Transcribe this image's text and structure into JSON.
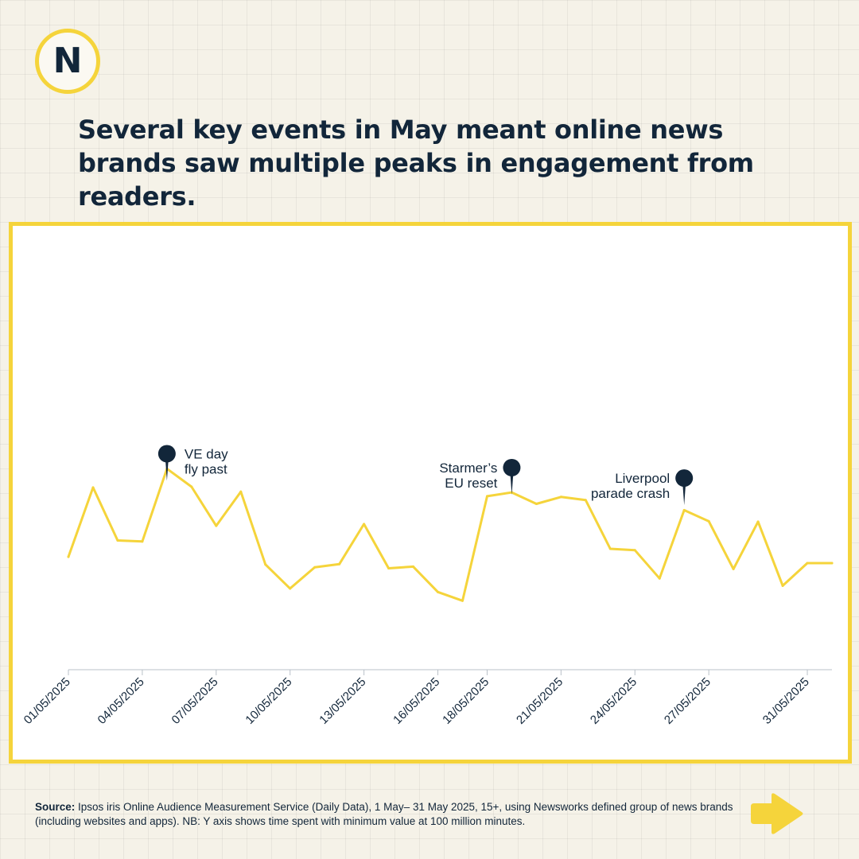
{
  "logo": {
    "letter": "N",
    "ring_color": "#f5d43b"
  },
  "headline": "Several key events in May meant online news brands saw multiple peaks in engagement from readers.",
  "chart_data": {
    "type": "line",
    "title": "",
    "xlabel": "",
    "ylabel": "",
    "line_color": "#f5d43b",
    "axis_color": "#12263a",
    "grid": false,
    "y_axis_visible": false,
    "x_tick_labels": [
      "01/05/2025",
      "04/05/2025",
      "07/05/2025",
      "10/05/2025",
      "13/05/2025",
      "16/05/2025",
      "18/05/2025",
      "21/05/2025",
      "24/05/2025",
      "27/05/2025",
      "31/05/2025"
    ],
    "x": [
      "01/05/2025",
      "02/05/2025",
      "03/05/2025",
      "04/05/2025",
      "05/05/2025",
      "06/05/2025",
      "07/05/2025",
      "08/05/2025",
      "09/05/2025",
      "10/05/2025",
      "11/05/2025",
      "12/05/2025",
      "13/05/2025",
      "14/05/2025",
      "15/05/2025",
      "16/05/2025",
      "17/05/2025",
      "18/05/2025",
      "19/05/2025",
      "20/05/2025",
      "21/05/2025",
      "22/05/2025",
      "23/05/2025",
      "24/05/2025",
      "25/05/2025",
      "26/05/2025",
      "27/05/2025",
      "28/05/2025",
      "29/05/2025",
      "30/05/2025",
      "31/05/2025",
      "01/06/2025"
    ],
    "series": [
      {
        "values": [
          0.324,
          0.523,
          0.371,
          0.368,
          0.577,
          0.525,
          0.413,
          0.511,
          0.302,
          0.233,
          0.294,
          0.303,
          0.418,
          0.291,
          0.296,
          0.223,
          0.198,
          0.498,
          0.509,
          0.476,
          0.496,
          0.487,
          0.347,
          0.343,
          0.262,
          0.458,
          0.426,
          0.289,
          0.425,
          0.241,
          0.306,
          0.306
        ]
      }
    ],
    "annotations": [
      {
        "index": 4,
        "lines": [
          "VE day",
          "fly past"
        ],
        "side": "right",
        "y": 0.62
      },
      {
        "index": 18,
        "lines": [
          "Starmer’s",
          "EU reset"
        ],
        "side": "left",
        "y": 0.58
      },
      {
        "index": 25,
        "lines": [
          "Liverpool",
          "parade crash"
        ],
        "side": "left",
        "y": 0.55
      }
    ]
  },
  "source": {
    "label": "Source:",
    "text": " Ipsos iris Online Audience Measurement Service (Daily Data), 1 May– 31 May 2025, 15+, using Newsworks defined group of news brands (including websites and apps). NB: Y axis shows time spent with minimum value at 100 million minutes."
  },
  "next_button": {
    "icon": "arrow-right-icon",
    "color": "#f5d43b"
  }
}
